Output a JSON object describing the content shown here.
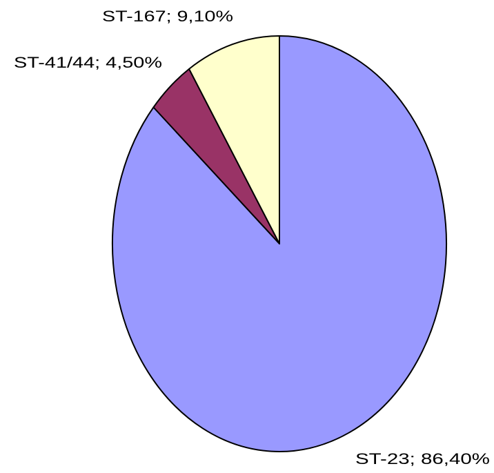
{
  "chart_data": {
    "type": "pie",
    "values": [
      86.4,
      4.5,
      9.1
    ],
    "value_labels": [
      "ST-23; 86,40%",
      "ST-41/44; 4,50%",
      "ST-167; 9,10%"
    ],
    "colors": [
      "#9999ff",
      "#993366",
      "#ffffcc"
    ]
  }
}
